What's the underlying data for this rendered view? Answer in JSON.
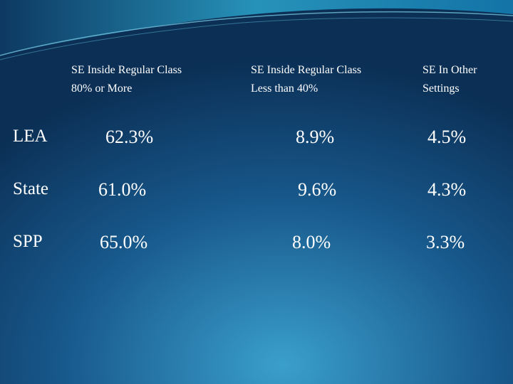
{
  "table": {
    "columns": [
      "SE Inside Regular Class 80% or More",
      "SE Inside Regular Class Less than 40%",
      "SE In Other Settings"
    ],
    "rows": [
      [
        "LEA",
        "62.3%",
        "8.9%",
        "4.5%"
      ],
      [
        "State",
        "61.0%",
        "9.6%",
        "4.3%"
      ],
      [
        "SPP",
        "65.0%",
        "8.0%",
        "3.3%"
      ]
    ]
  }
}
